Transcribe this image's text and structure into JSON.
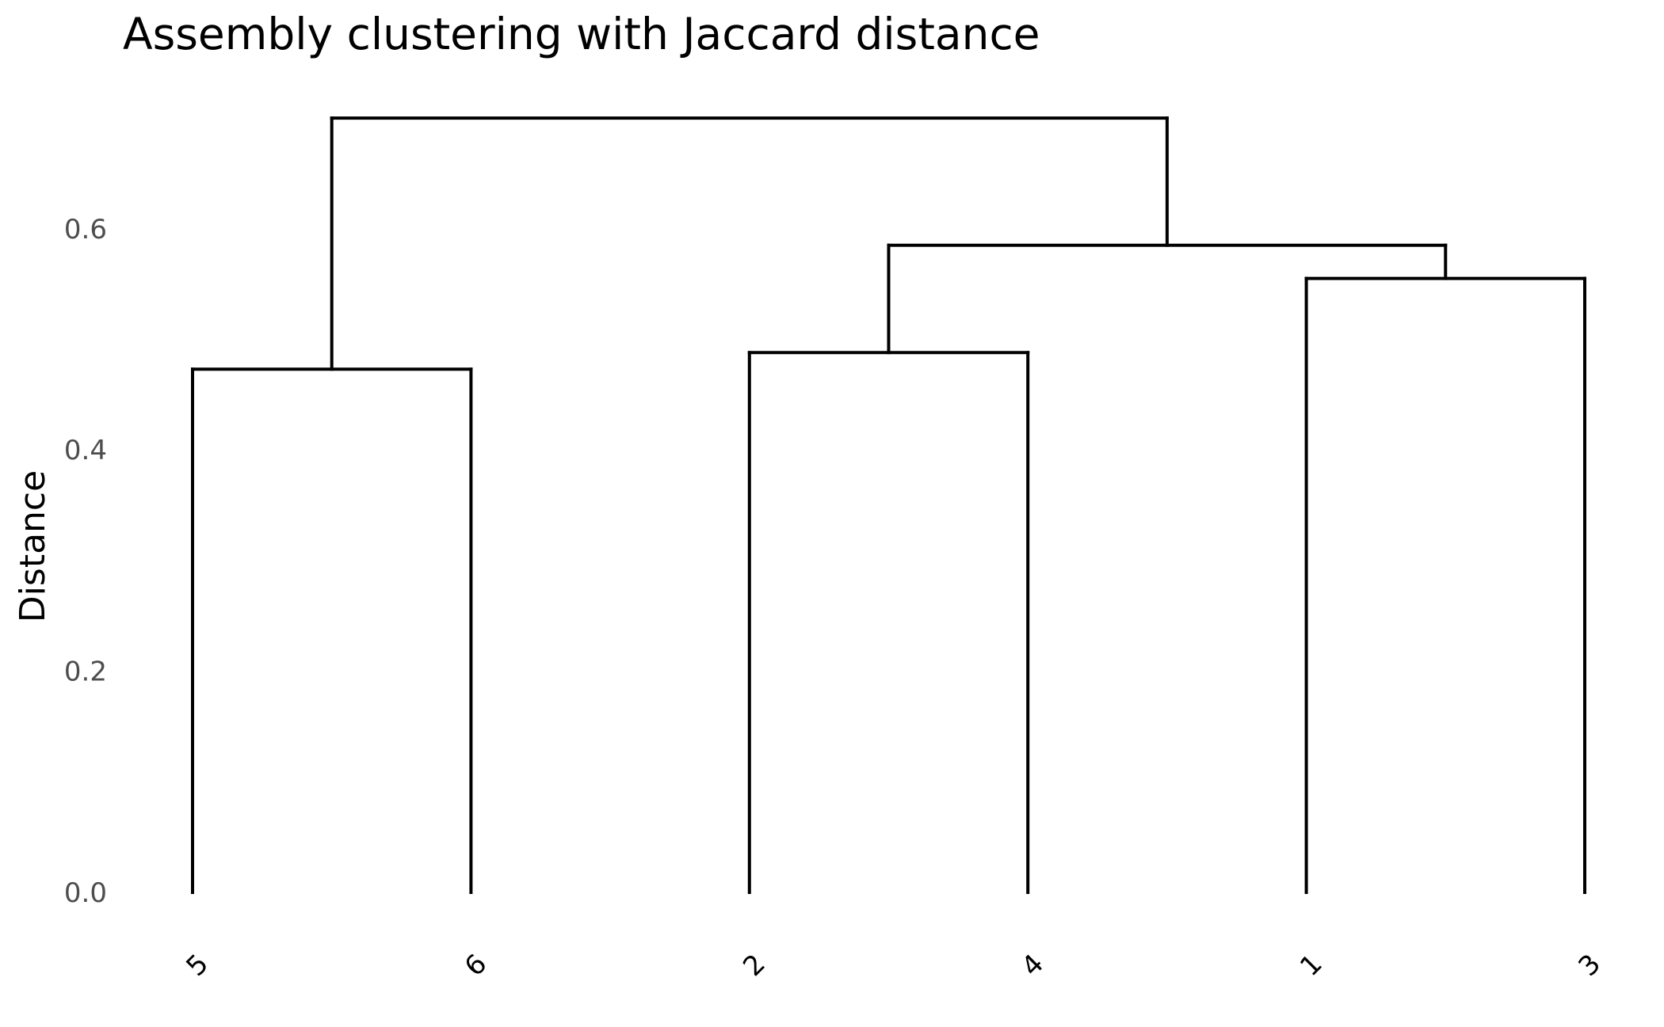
{
  "chart_data": {
    "type": "dendrogram",
    "title": "Assembly clustering with Jaccard distance",
    "xlabel": "",
    "ylabel": "Distance",
    "ylim": [
      0,
      0.7
    ],
    "yticks": [
      0.0,
      0.2,
      0.4,
      0.6
    ],
    "ytick_labels": [
      "0.0",
      "0.2",
      "0.4",
      "0.6"
    ],
    "leaf_order": [
      "5",
      "6",
      "2",
      "4",
      "1",
      "3"
    ],
    "grid": false,
    "legend": "none",
    "line_color": "#000000",
    "merges": [
      {
        "left": "5",
        "right": "6",
        "height": 0.473
      },
      {
        "left": "2",
        "right": "4",
        "height": 0.488
      },
      {
        "left": "1",
        "right": "3",
        "height": 0.555
      },
      {
        "left": "(2,4)",
        "right": "(1,3)",
        "height": 0.585
      },
      {
        "left": "(5,6)",
        "right": "((2,4),(1,3))",
        "height": 0.7
      }
    ]
  }
}
